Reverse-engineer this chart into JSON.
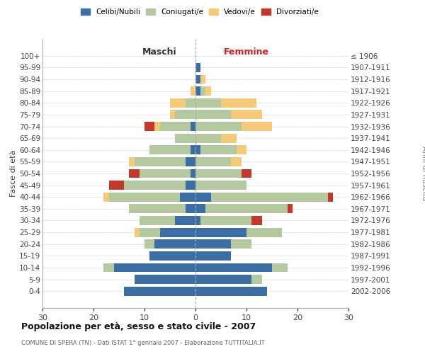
{
  "age_groups": [
    "0-4",
    "5-9",
    "10-14",
    "15-19",
    "20-24",
    "25-29",
    "30-34",
    "35-39",
    "40-44",
    "45-49",
    "50-54",
    "55-59",
    "60-64",
    "65-69",
    "70-74",
    "75-79",
    "80-84",
    "85-89",
    "90-94",
    "95-99",
    "100+"
  ],
  "birth_years": [
    "2002-2006",
    "1997-2001",
    "1992-1996",
    "1987-1991",
    "1982-1986",
    "1977-1981",
    "1972-1976",
    "1967-1971",
    "1962-1966",
    "1957-1961",
    "1952-1956",
    "1947-1951",
    "1942-1946",
    "1937-1941",
    "1932-1936",
    "1927-1931",
    "1922-1926",
    "1917-1921",
    "1912-1916",
    "1907-1911",
    "≤ 1906"
  ],
  "male": {
    "celibi": [
      14,
      12,
      16,
      9,
      8,
      7,
      4,
      2,
      3,
      2,
      1,
      2,
      1,
      0,
      1,
      0,
      0,
      0,
      0,
      0,
      0
    ],
    "coniugati": [
      0,
      0,
      2,
      0,
      2,
      4,
      7,
      11,
      14,
      12,
      10,
      10,
      8,
      4,
      6,
      4,
      2,
      0,
      0,
      0,
      0
    ],
    "vedovi": [
      0,
      0,
      0,
      0,
      0,
      1,
      0,
      0,
      1,
      0,
      0,
      1,
      0,
      0,
      1,
      1,
      3,
      1,
      0,
      0,
      0
    ],
    "divorziati": [
      0,
      0,
      0,
      0,
      0,
      0,
      0,
      0,
      0,
      3,
      2,
      0,
      0,
      0,
      2,
      0,
      0,
      0,
      0,
      0,
      0
    ]
  },
  "female": {
    "nubili": [
      14,
      11,
      15,
      7,
      7,
      10,
      1,
      2,
      3,
      0,
      0,
      0,
      1,
      0,
      0,
      0,
      0,
      1,
      1,
      1,
      0
    ],
    "coniugate": [
      0,
      2,
      3,
      0,
      4,
      7,
      10,
      16,
      23,
      10,
      9,
      7,
      7,
      5,
      9,
      7,
      5,
      1,
      0,
      0,
      0
    ],
    "vedove": [
      0,
      0,
      0,
      0,
      0,
      0,
      0,
      0,
      0,
      0,
      0,
      2,
      2,
      3,
      6,
      6,
      7,
      1,
      1,
      0,
      0
    ],
    "divorziate": [
      0,
      0,
      0,
      0,
      0,
      0,
      2,
      1,
      1,
      0,
      2,
      0,
      0,
      0,
      0,
      0,
      0,
      0,
      0,
      0,
      0
    ]
  },
  "colors": {
    "celibi": "#3a6ea5",
    "coniugati": "#b5c9a0",
    "vedovi": "#f5c97a",
    "divorziati": "#c0392b"
  },
  "xlim": 30,
  "title": "Popolazione per età, sesso e stato civile - 2007",
  "subtitle": "COMUNE DI SPERA (TN) - Dati ISTAT 1° gennaio 2007 - Elaborazione TUTTITALIA.IT",
  "xlabel_left": "Maschi",
  "xlabel_right": "Femmine",
  "ylabel": "Fasce di età",
  "ylabel_right": "Anni di nascita"
}
